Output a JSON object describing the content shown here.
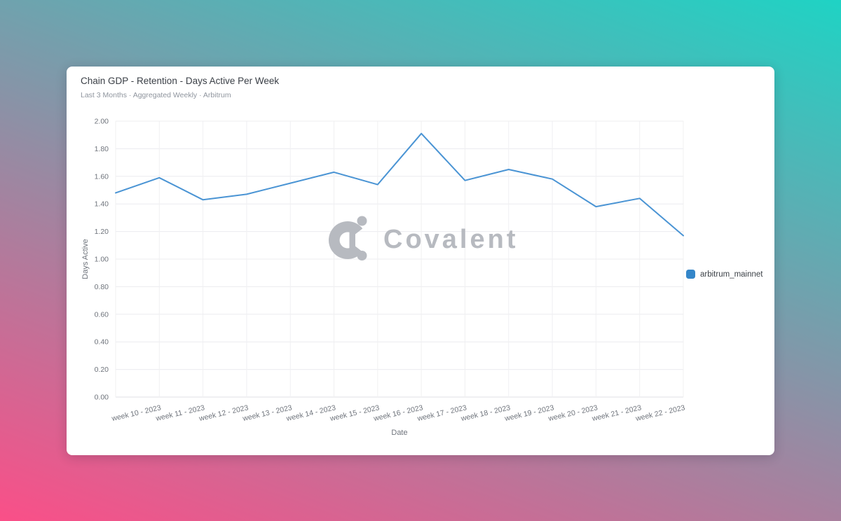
{
  "chart_data": {
    "type": "line",
    "title": "Chain GDP - Retention - Days Active Per Week",
    "subtitle": "Last 3 Months · Aggregated Weekly · Arbitrum",
    "xlabel": "Date",
    "ylabel": "Days Active",
    "ylim": [
      0,
      2
    ],
    "yticks": [
      "0.00",
      "0.20",
      "0.40",
      "0.60",
      "0.80",
      "1.00",
      "1.20",
      "1.40",
      "1.60",
      "1.80",
      "2.00"
    ],
    "categories": [
      "",
      "week 10 - 2023",
      "week 11 - 2023",
      "week 12 - 2023",
      "week 13 - 2023",
      "week 14 - 2023",
      "week 15 - 2023",
      "week 16 - 2023",
      "week 17 - 2023",
      "week 18 - 2023",
      "week 19 - 2023",
      "week 20 - 2023",
      "week 21 - 2023",
      "week 22 - 2023"
    ],
    "grid": true,
    "legend_position": "middle-right",
    "series": [
      {
        "name": "arbitrum_mainnet",
        "color": "#4a94d4",
        "legend_color": "#3486c9",
        "values": [
          1.48,
          1.59,
          1.43,
          1.47,
          1.55,
          1.63,
          1.54,
          1.91,
          1.57,
          1.65,
          1.58,
          1.38,
          1.44,
          1.17
        ]
      }
    ]
  },
  "watermark": {
    "text": "Covalent",
    "color": "#b7bac0"
  },
  "colors": {
    "background_gradient": [
      "#1fd3c4",
      "#8c91a6",
      "#fa4f88"
    ],
    "card_bg": "#ffffff",
    "gridline_h": "#ececef",
    "gridline_v": "#f0f0f2",
    "axis_line": "#e0e0e4",
    "axis_text": "#6f747c",
    "title_text": "#3a3f46",
    "subtitle_text": "#8f959e"
  }
}
